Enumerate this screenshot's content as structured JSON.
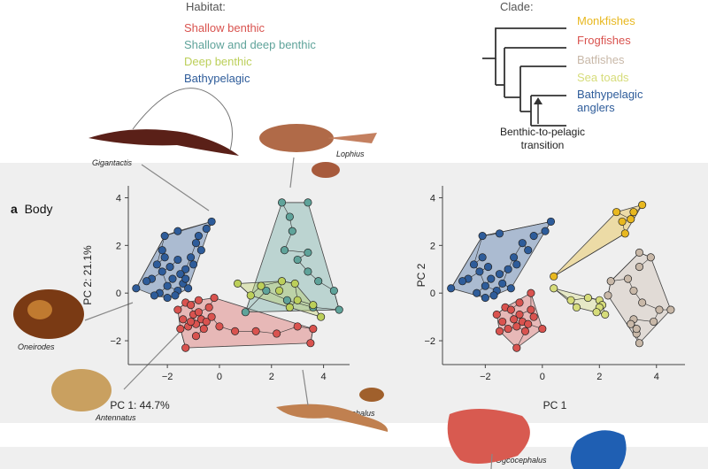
{
  "habitat_legend": {
    "title": "Habitat:",
    "items": [
      {
        "label": "Shallow benthic",
        "color": "#d9534f"
      },
      {
        "label": "Shallow and deep benthic",
        "color": "#5fa39a"
      },
      {
        "label": "Deep benthic",
        "color": "#bccf5a"
      },
      {
        "label": "Bathypelagic",
        "color": "#2e5c9a"
      }
    ]
  },
  "clade_legend": {
    "title": "Clade:",
    "items": [
      {
        "label": "Monkfishes",
        "color": "#e8b820"
      },
      {
        "label": "Frogfishes",
        "color": "#d9534f"
      },
      {
        "label": "Batfishes",
        "color": "#c8b8a8"
      },
      {
        "label": "Sea toads",
        "color": "#d6dc7a"
      },
      {
        "label": "Bathypelagic anglers",
        "color": "#2e5c9a"
      }
    ],
    "arrow_label": "Benthic-to-pelagic transition"
  },
  "panel": {
    "letter": "a",
    "title": "Body"
  },
  "specimens": {
    "gigantactis": "Gigantactis",
    "lophius": "Lophius",
    "oneirodes": "Oneirodes",
    "antennatus": "Antennatus",
    "ogcocephalus": "Ogcocephalus",
    "ogcocephalus_bottom": "Ogcocephalus"
  },
  "chart_data": [
    {
      "type": "scatter",
      "title": "Body",
      "xlabel": "PC 1: 44.7%",
      "ylabel": "PC 2: 21.1%",
      "xticks": [
        -2,
        0,
        2,
        4
      ],
      "yticks": [
        4,
        2,
        0,
        -2
      ],
      "xlim": [
        -3.5,
        5
      ],
      "ylim": [
        -3,
        4.5
      ],
      "grouping": "habitat",
      "series": [
        {
          "name": "Bathypelagic",
          "color": "#2e5c9a",
          "points": [
            [
              -3.2,
              0.2
            ],
            [
              -2.1,
              2.4
            ],
            [
              -0.3,
              3.0
            ],
            [
              -0.5,
              2.7
            ],
            [
              -1.6,
              2.6
            ],
            [
              -2.4,
              1.2
            ],
            [
              -2.2,
              0.9
            ],
            [
              -2.0,
              0.3
            ],
            [
              -1.8,
              0.6
            ],
            [
              -1.6,
              0.1
            ],
            [
              -1.4,
              0.4
            ],
            [
              -1.3,
              1.0
            ],
            [
              -1.1,
              1.5
            ],
            [
              -0.9,
              2.1
            ],
            [
              -0.7,
              1.8
            ],
            [
              -2.6,
              0.6
            ],
            [
              -2.3,
              0.0
            ],
            [
              -2.0,
              -0.2
            ],
            [
              -1.7,
              -0.1
            ],
            [
              -1.5,
              0.8
            ],
            [
              -1.2,
              0.2
            ],
            [
              -1.0,
              1.2
            ],
            [
              -0.8,
              2.4
            ],
            [
              -2.1,
              1.5
            ],
            [
              -2.8,
              0.5
            ],
            [
              -1.9,
              1.1
            ],
            [
              -1.3,
              0.6
            ],
            [
              -2.5,
              -0.1
            ],
            [
              -1.6,
              1.4
            ],
            [
              -2.2,
              1.8
            ]
          ]
        },
        {
          "name": "Shallow benthic",
          "color": "#d9534f",
          "points": [
            [
              -1.6,
              -0.7
            ],
            [
              -1.3,
              -0.4
            ],
            [
              -1.1,
              -0.5
            ],
            [
              -1.0,
              -0.9
            ],
            [
              -0.9,
              -1.3
            ],
            [
              -0.8,
              -0.8
            ],
            [
              -0.7,
              -1.1
            ],
            [
              -0.6,
              -1.5
            ],
            [
              -0.5,
              -1.2
            ],
            [
              -0.4,
              -0.6
            ],
            [
              -0.3,
              -1.0
            ],
            [
              -1.2,
              -1.4
            ],
            [
              -1.4,
              -1.1
            ],
            [
              -1.5,
              -1.5
            ],
            [
              -1.3,
              -2.3
            ],
            [
              -0.2,
              -0.2
            ],
            [
              0.0,
              -1.4
            ],
            [
              0.6,
              -1.6
            ],
            [
              1.4,
              -1.6
            ],
            [
              2.2,
              -1.7
            ],
            [
              3.0,
              -1.4
            ],
            [
              3.6,
              -1.5
            ],
            [
              3.5,
              -2.1
            ],
            [
              -0.9,
              -1.8
            ],
            [
              -1.1,
              -1.2
            ],
            [
              -0.8,
              -0.3
            ]
          ]
        },
        {
          "name": "Shallow and deep benthic",
          "color": "#5fa39a",
          "points": [
            [
              2.4,
              3.8
            ],
            [
              3.4,
              3.8
            ],
            [
              2.7,
              3.2
            ],
            [
              2.8,
              2.6
            ],
            [
              2.5,
              1.8
            ],
            [
              3.4,
              1.7
            ],
            [
              3.0,
              1.4
            ],
            [
              3.4,
              0.9
            ],
            [
              3.8,
              0.5
            ],
            [
              4.4,
              0.1
            ],
            [
              4.6,
              -0.7
            ],
            [
              3.6,
              -0.6
            ],
            [
              2.6,
              -0.3
            ],
            [
              1.8,
              0.1
            ],
            [
              1.0,
              -0.8
            ]
          ]
        },
        {
          "name": "Deep benthic",
          "color": "#bccf5a",
          "points": [
            [
              0.7,
              0.4
            ],
            [
              1.2,
              -0.1
            ],
            [
              1.6,
              0.3
            ],
            [
              2.4,
              0.5
            ],
            [
              2.9,
              0.4
            ],
            [
              2.3,
              0.1
            ],
            [
              3.0,
              -0.3
            ],
            [
              3.6,
              -0.5
            ],
            [
              3.9,
              -1.0
            ],
            [
              2.7,
              -0.6
            ]
          ]
        }
      ]
    },
    {
      "type": "scatter",
      "title": "",
      "xlabel": "PC 1",
      "ylabel": "PC 2",
      "xticks": [
        -2,
        0,
        2,
        4
      ],
      "yticks": [
        4,
        2,
        0,
        -2
      ],
      "xlim": [
        -3.5,
        5
      ],
      "ylim": [
        -3,
        4.5
      ],
      "grouping": "clade",
      "series": [
        {
          "name": "Bathypelagic anglers",
          "color": "#2e5c9a",
          "points": [
            [
              -3.2,
              0.2
            ],
            [
              -2.1,
              2.4
            ],
            [
              0.3,
              3.0
            ],
            [
              0.1,
              2.6
            ],
            [
              -1.5,
              2.5
            ],
            [
              -2.4,
              1.2
            ],
            [
              -2.2,
              0.9
            ],
            [
              -2.0,
              0.3
            ],
            [
              -1.8,
              0.6
            ],
            [
              -1.6,
              0.1
            ],
            [
              -1.4,
              0.4
            ],
            [
              -1.2,
              1.0
            ],
            [
              -1.0,
              1.5
            ],
            [
              -0.7,
              2.1
            ],
            [
              -0.5,
              1.8
            ],
            [
              -2.6,
              0.6
            ],
            [
              -2.3,
              0.0
            ],
            [
              -2.0,
              -0.2
            ],
            [
              -1.7,
              -0.1
            ],
            [
              -1.5,
              0.8
            ],
            [
              -1.1,
              0.2
            ],
            [
              -0.9,
              1.2
            ],
            [
              -0.3,
              2.4
            ],
            [
              -2.1,
              1.5
            ],
            [
              -2.8,
              0.5
            ],
            [
              -1.9,
              1.1
            ]
          ]
        },
        {
          "name": "Frogfishes",
          "color": "#d9534f",
          "points": [
            [
              -1.6,
              -0.9
            ],
            [
              -1.3,
              -0.6
            ],
            [
              -1.1,
              -0.7
            ],
            [
              -1.0,
              -1.1
            ],
            [
              -0.9,
              -1.4
            ],
            [
              -0.8,
              -0.9
            ],
            [
              -0.7,
              -1.2
            ],
            [
              -0.6,
              -1.6
            ],
            [
              -0.5,
              -1.3
            ],
            [
              -0.4,
              -0.7
            ],
            [
              -0.3,
              -1.0
            ],
            [
              -1.2,
              -1.5
            ],
            [
              -1.4,
              -1.2
            ],
            [
              -1.5,
              -1.6
            ],
            [
              -0.9,
              -2.3
            ],
            [
              -0.4,
              0.0
            ],
            [
              0.0,
              -1.5
            ],
            [
              -0.8,
              -0.4
            ]
          ]
        },
        {
          "name": "Monkfishes",
          "color": "#e8b820",
          "points": [
            [
              2.6,
              3.4
            ],
            [
              3.1,
              3.1
            ],
            [
              3.5,
              3.7
            ],
            [
              3.2,
              3.4
            ],
            [
              2.8,
              3.0
            ],
            [
              2.9,
              2.5
            ],
            [
              0.4,
              0.7
            ]
          ]
        },
        {
          "name": "Batfishes",
          "color": "#c8b8a8",
          "points": [
            [
              2.4,
              0.5
            ],
            [
              2.3,
              -0.1
            ],
            [
              3.4,
              1.7
            ],
            [
              3.8,
              1.5
            ],
            [
              3.4,
              1.1
            ],
            [
              3.0,
              0.6
            ],
            [
              3.2,
              0.1
            ],
            [
              3.5,
              -0.4
            ],
            [
              4.1,
              -0.7
            ],
            [
              4.5,
              -0.7
            ],
            [
              3.9,
              -1.2
            ],
            [
              3.2,
              -1.1
            ],
            [
              3.3,
              -1.7
            ],
            [
              3.4,
              -2.1
            ],
            [
              3.3,
              -1.5
            ],
            [
              3.1,
              -1.3
            ]
          ]
        },
        {
          "name": "Sea toads",
          "color": "#d6dc7a",
          "points": [
            [
              0.4,
              0.2
            ],
            [
              1.0,
              -0.3
            ],
            [
              1.6,
              -0.2
            ],
            [
              2.0,
              -0.3
            ],
            [
              2.1,
              -0.5
            ],
            [
              2.0,
              -0.6
            ],
            [
              1.9,
              -0.8
            ],
            [
              2.2,
              -0.9
            ],
            [
              1.2,
              -0.6
            ]
          ]
        }
      ]
    }
  ]
}
